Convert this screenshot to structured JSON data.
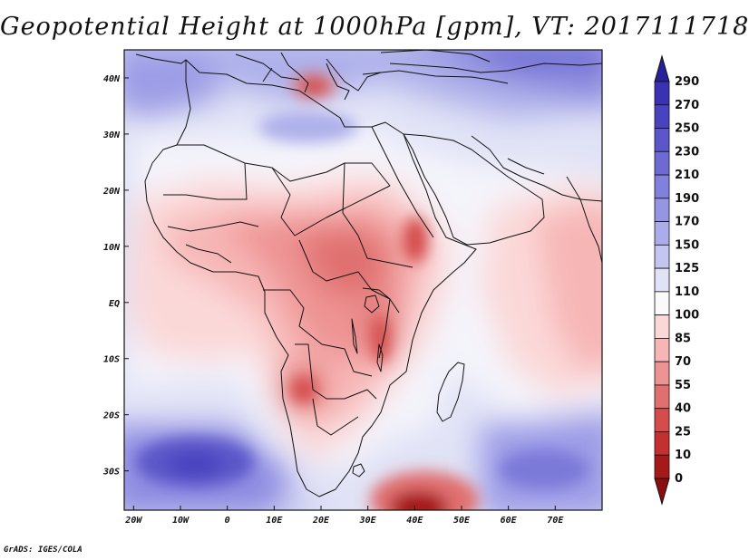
{
  "title": "Geopotential Height at 1000hPa [gpm], VT: 2017111718",
  "credit": "GrADS: IGES/COLA",
  "map": {
    "lat_ticks": [
      "40N",
      "30N",
      "20N",
      "10N",
      "EQ",
      "10S",
      "20S",
      "30S"
    ],
    "lon_ticks": [
      "20W",
      "10W",
      "0",
      "10E",
      "20E",
      "30E",
      "40E",
      "50E",
      "60E",
      "70E"
    ],
    "lon_range": [
      -22,
      80
    ],
    "lat_range": [
      -37,
      45
    ]
  },
  "colorbar": {
    "labels": [
      "290",
      "270",
      "250",
      "230",
      "210",
      "190",
      "170",
      "150",
      "125",
      "110",
      "100",
      "85",
      "70",
      "55",
      "40",
      "25",
      "10",
      "0"
    ],
    "colors": [
      "#27209a",
      "#3a32b2",
      "#4a43c0",
      "#5b56c9",
      "#6d6ad3",
      "#8180dc",
      "#9695e4",
      "#acace9",
      "#c5c6f0",
      "#e0e2f6",
      "#fafafa",
      "#fbd8d8",
      "#f7b6b6",
      "#ee9393",
      "#e06f6f",
      "#d44c4c",
      "#c43030",
      "#a51919",
      "#8b0d0d"
    ]
  }
}
